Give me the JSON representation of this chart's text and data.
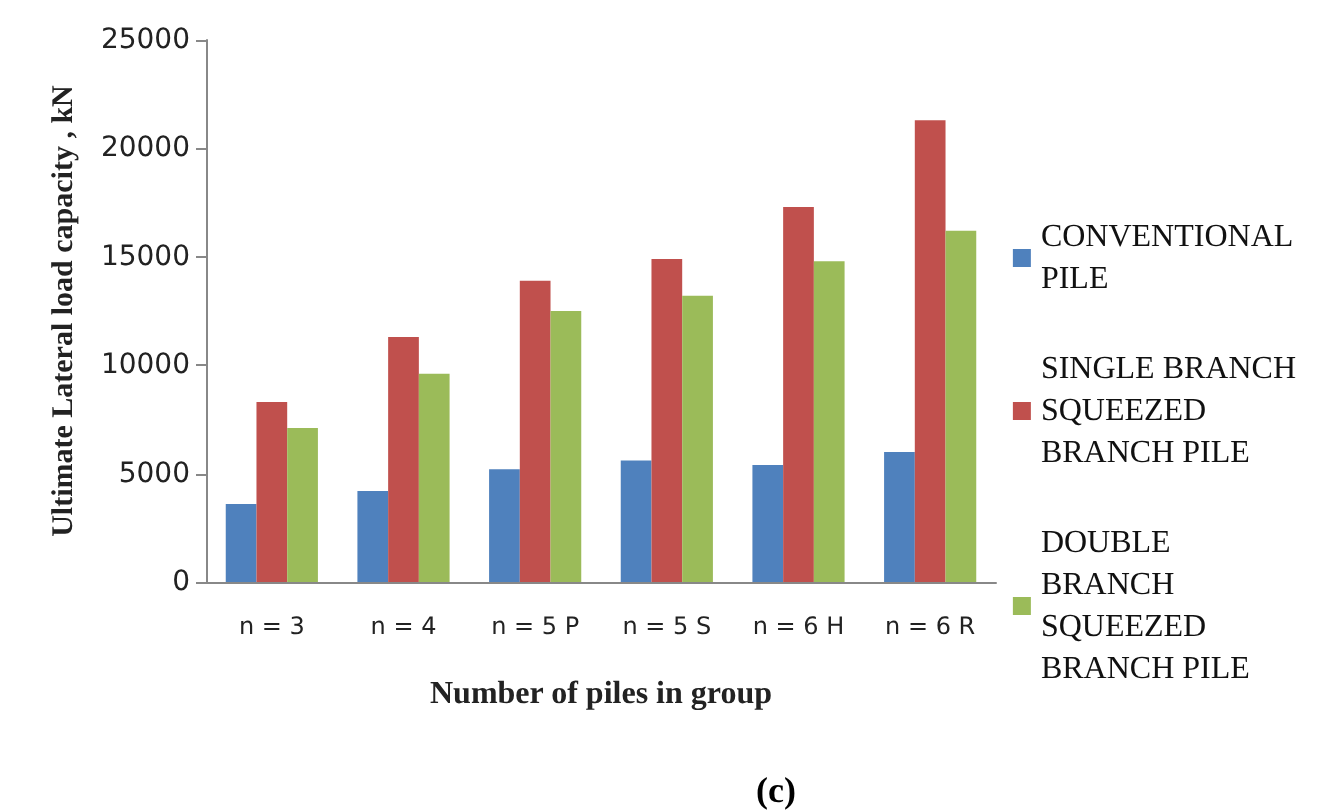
{
  "chart_data": {
    "type": "bar",
    "xlabel": "Number of piles in group",
    "ylabel": "Ultimate Lateral load capacity , kN",
    "categories": [
      "n = 3",
      "n = 4",
      "n = 5 P",
      "n = 5 S",
      "n = 6 H",
      "n = 6 R"
    ],
    "series": [
      {
        "name": "CONVENTIONAL\nPILE",
        "color": "#4f81bd",
        "values": [
          3600,
          4200,
          5200,
          5600,
          5400,
          6000
        ]
      },
      {
        "name": "SINGLE BRANCH\nSQUEEZED\nBRANCH PILE",
        "color": "#c0504d",
        "values": [
          8300,
          11300,
          13900,
          14900,
          17300,
          21300
        ]
      },
      {
        "name": "DOUBLE\nBRANCH\nSQUEEZED\nBRANCH PILE",
        "color": "#9bbb59",
        "values": [
          7100,
          9600,
          12500,
          13200,
          14800,
          16200
        ]
      }
    ],
    "ylim": [
      0,
      25000
    ],
    "yticks": [
      0,
      5000,
      10000,
      15000,
      20000,
      25000
    ],
    "grid": false,
    "legend": "right",
    "annotations": [
      "(c)"
    ]
  }
}
